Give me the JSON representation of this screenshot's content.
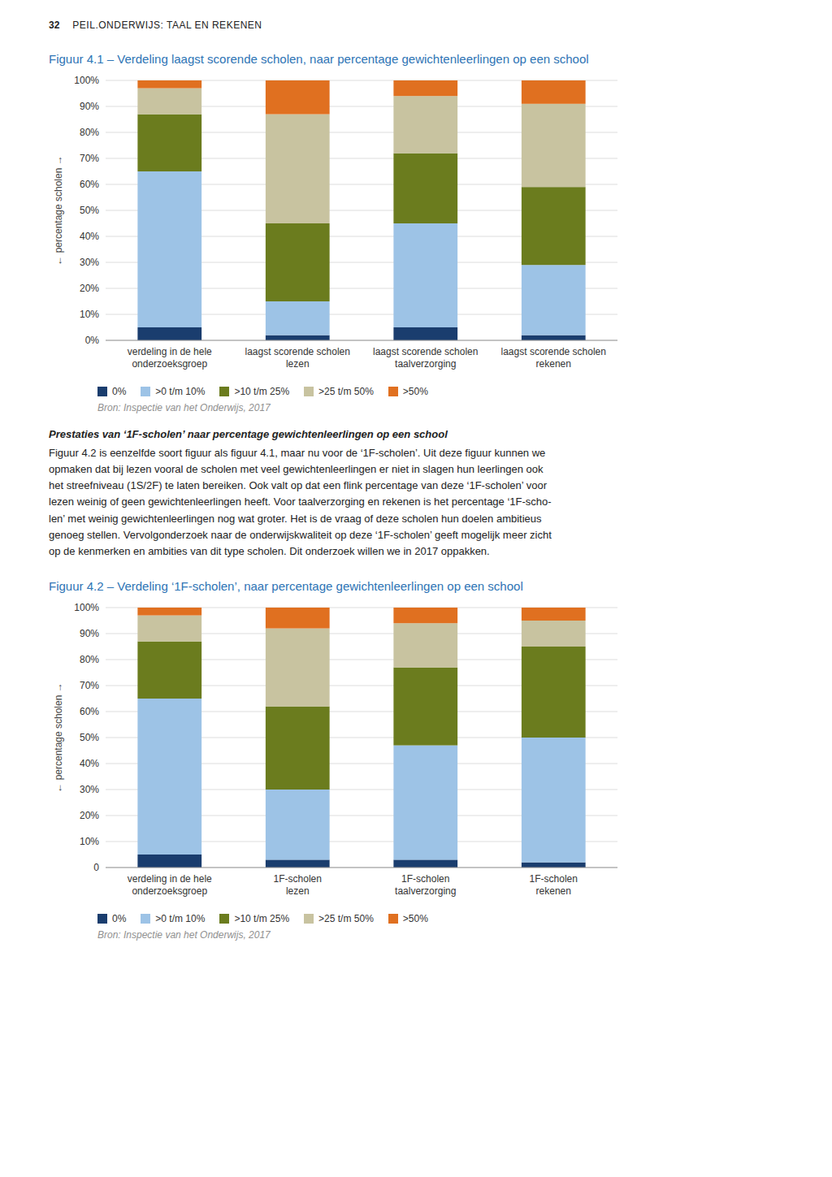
{
  "page_header": "32",
  "page_subheader": "PEIL.ONDERWIJS: TAAL EN REKENEN",
  "body_title": "Prestaties van ‘1F-scholen’ naar percentage gewichtenleerlingen op een school",
  "body_text": "Figuur 4.2 is eenzelfde soort figuur als figuur 4.1, maar nu voor de ‘1F-scholen’. Uit deze figuur kunnen we\nopmaken dat bij lezen vooral de scholen met veel gewichtenleerlingen er niet in slagen hun leerlingen ook\nhet streefniveau (1S/2F) te laten bereiken. Ook valt op dat een flink percentage van deze ‘1F-scholen’ voor\nlezen weinig of geen gewichtenleerlingen heeft. Voor taalverzorging en rekenen is het percentage ‘1F-scho-\nlen’ met weinig gewichtenleerlingen nog wat groter. Het is de vraag of deze scholen hun doelen ambitieus\ngenoeg stellen. Vervolgonderzoek naar de onderwijskwaliteit op deze ‘1F-scholen’ geeft mogelijk meer zicht\nop de kenmerken en ambities van dit type scholen. Dit onderzoek willen we in 2017 oppakken.",
  "chart_data": [
    {
      "type": "bar",
      "stacked": true,
      "grid": true,
      "legend": "bottom",
      "title": "Figuur 4.1 – Verdeling laagst scorende scholen, naar percentage gewichtenleerlingen op een school",
      "y_label": "← percentage scholen →",
      "source": "Bron: Inspectie van het Onderwijs, 2017",
      "categories": [
        "verdeling in de hele\nonderzoeksgroep",
        "laagst scorende scholen\nlezen",
        "laagst scorende scholen\ntaalverzorging",
        "laagst scorende scholen\nrekenen"
      ],
      "series": [
        {
          "name": "0%",
          "color": "#1a3d6e",
          "values": [
            5,
            2,
            5,
            2
          ]
        },
        {
          "name": ">0 t/m 10%",
          "color": "#9dc3e6",
          "values": [
            60,
            13,
            40,
            27
          ]
        },
        {
          "name": ">10 t/m 25%",
          "color": "#6b7c1e",
          "values": [
            22,
            30,
            27,
            30
          ]
        },
        {
          "name": ">25 t/m 50%",
          "color": "#c8c3a0",
          "values": [
            10,
            42,
            22,
            32
          ]
        },
        {
          "name": ">50%",
          "color": "#e07020",
          "values": [
            3,
            13,
            6,
            9
          ]
        }
      ],
      "ylim": [
        0,
        100
      ],
      "yticks": [
        {
          "value": 0,
          "label": "0%"
        },
        {
          "value": 10,
          "label": "10%"
        },
        {
          "value": 20,
          "label": "20%"
        },
        {
          "value": 30,
          "label": "30%"
        },
        {
          "value": 40,
          "label": "40%"
        },
        {
          "value": 50,
          "label": "50%"
        },
        {
          "value": 60,
          "label": "60%"
        },
        {
          "value": 70,
          "label": "70%"
        },
        {
          "value": 80,
          "label": "80%"
        },
        {
          "value": 90,
          "label": "90%"
        },
        {
          "value": 100,
          "label": "100%"
        }
      ]
    },
    {
      "type": "bar",
      "stacked": true,
      "grid": true,
      "legend": "bottom",
      "title": "Figuur 4.2 – Verdeling ‘1F-scholen’, naar percentage gewichtenleerlingen op een school",
      "y_label": "← percentage scholen →",
      "source": "Bron: Inspectie van het Onderwijs, 2017",
      "categories": [
        "verdeling in de hele\nonderzoeksgroep",
        "1F-scholen\nlezen",
        "1F-scholen\ntaalverzorging",
        "1F-scholen\nrekenen"
      ],
      "series": [
        {
          "name": "0%",
          "color": "#1a3d6e",
          "values": [
            5,
            3,
            3,
            2
          ]
        },
        {
          "name": ">0 t/m 10%",
          "color": "#9dc3e6",
          "values": [
            60,
            27,
            44,
            48
          ]
        },
        {
          "name": ">10 t/m 25%",
          "color": "#6b7c1e",
          "values": [
            22,
            32,
            30,
            35
          ]
        },
        {
          "name": ">25 t/m 50%",
          "color": "#c8c3a0",
          "values": [
            10,
            30,
            17,
            10
          ]
        },
        {
          "name": ">50%",
          "color": "#e07020",
          "values": [
            3,
            8,
            6,
            5
          ]
        }
      ],
      "ylim": [
        0,
        100
      ],
      "yticks": [
        0,
        {
          "value": 10,
          "label": "10%"
        },
        {
          "value": 20,
          "label": "20%"
        },
        {
          "value": 30,
          "label": "30%"
        },
        {
          "value": 40,
          "label": "40%"
        },
        {
          "value": 50,
          "label": "50%"
        },
        {
          "value": 60,
          "label": "60%"
        },
        {
          "value": 70,
          "label": "70%"
        },
        {
          "value": 80,
          "label": "80%"
        },
        {
          "value": 90,
          "label": "90%"
        },
        {
          "value": 100,
          "label": "100%"
        }
      ]
    }
  ]
}
